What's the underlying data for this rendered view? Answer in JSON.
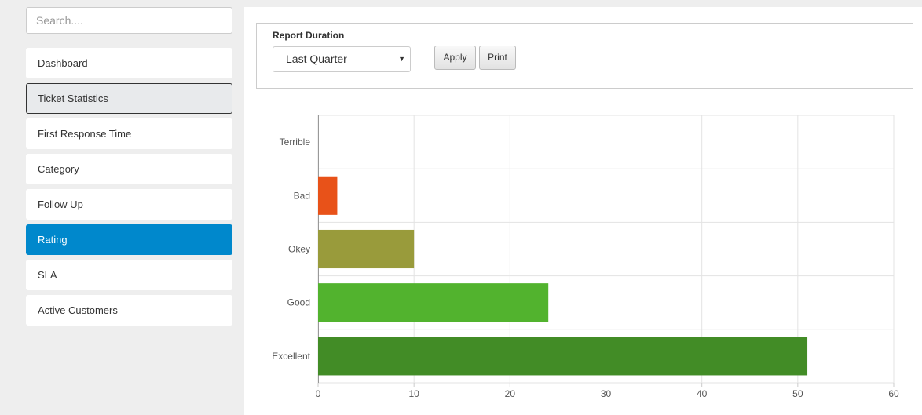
{
  "search": {
    "placeholder": "Search...."
  },
  "sidebar": {
    "items": [
      {
        "label": "Dashboard",
        "state": "normal"
      },
      {
        "label": "Ticket Statistics",
        "state": "hover"
      },
      {
        "label": "First Response Time",
        "state": "normal"
      },
      {
        "label": "Category",
        "state": "normal"
      },
      {
        "label": "Follow Up",
        "state": "normal"
      },
      {
        "label": "Rating",
        "state": "active"
      },
      {
        "label": "SLA",
        "state": "normal"
      },
      {
        "label": "Active Customers",
        "state": "normal"
      }
    ]
  },
  "filter": {
    "label": "Report Duration",
    "selected": "Last Quarter",
    "apply_label": "Apply",
    "print_label": "Print"
  },
  "chart_data": {
    "type": "bar",
    "orientation": "horizontal",
    "categories": [
      "Terrible",
      "Bad",
      "Okey",
      "Good",
      "Excellent"
    ],
    "values": [
      0,
      2,
      10,
      24,
      51
    ],
    "colors": [
      "#cc2222",
      "#e85219",
      "#999b3b",
      "#52b32e",
      "#428c26"
    ],
    "xlim": [
      0,
      60
    ],
    "xticks": [
      0,
      10,
      20,
      30,
      40,
      50,
      60
    ],
    "grid": true,
    "title": "",
    "xlabel": "",
    "ylabel": ""
  }
}
